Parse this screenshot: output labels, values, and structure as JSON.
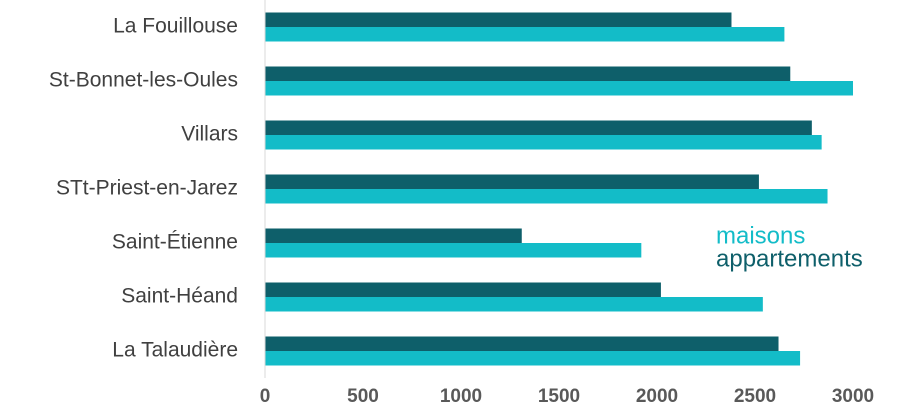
{
  "chart_data": {
    "type": "hbar",
    "categories": [
      "La Fouillouse",
      "St-Bonnet-les-Oules",
      "Villars",
      "STt-Priest-en-Jarez",
      "Saint-Étienne",
      "Saint-Héand",
      "La Talaudière"
    ],
    "series": [
      {
        "name": "maisons",
        "color": "#13bcc8",
        "values": [
          2650,
          3000,
          2840,
          2870,
          1920,
          2540,
          2730
        ]
      },
      {
        "name": "appartements",
        "color": "#0e5f6a",
        "values": [
          2380,
          2680,
          2790,
          2520,
          1310,
          2020,
          2620
        ]
      }
    ],
    "xlim": [
      0,
      3000
    ],
    "xticks": [
      0,
      500,
      1000,
      1500,
      2000,
      2500,
      3000
    ],
    "grid": false
  }
}
